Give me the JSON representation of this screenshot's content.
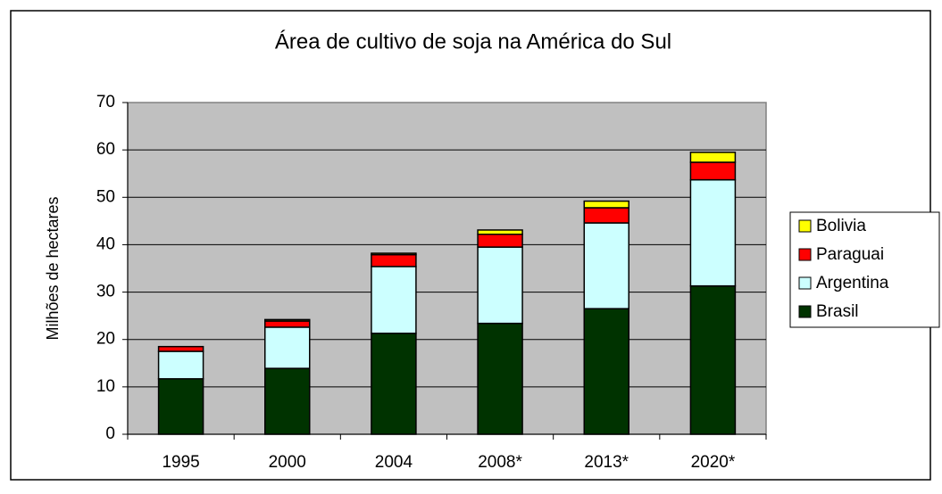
{
  "chart_data": {
    "type": "stacked_bar",
    "title": "Área de cultivo de soja na América do Sul",
    "y_label": "Milhões de hectares",
    "categories": [
      "1995",
      "2000",
      "2004",
      "2008*",
      "2013*",
      "2020*"
    ],
    "series": [
      {
        "name": "Brasil",
        "color": "#003300",
        "values": [
          11.7,
          13.9,
          21.3,
          23.4,
          26.5,
          31.3
        ]
      },
      {
        "name": "Argentina",
        "color": "#ccffff",
        "values": [
          5.8,
          8.7,
          14.1,
          16.1,
          18.1,
          22.4
        ]
      },
      {
        "name": "Paraguai",
        "color": "#ff0000",
        "values": [
          1.0,
          1.3,
          2.5,
          2.7,
          3.2,
          3.7
        ]
      },
      {
        "name": "Bolivia",
        "color": "#ffff00",
        "values": [
          0,
          0.3,
          0.3,
          0.9,
          1.4,
          2.1
        ]
      }
    ],
    "ylim": [
      0,
      70
    ],
    "yticks": [
      0,
      10,
      20,
      30,
      40,
      50,
      60,
      70
    ],
    "grid": true,
    "legend": "right"
  }
}
